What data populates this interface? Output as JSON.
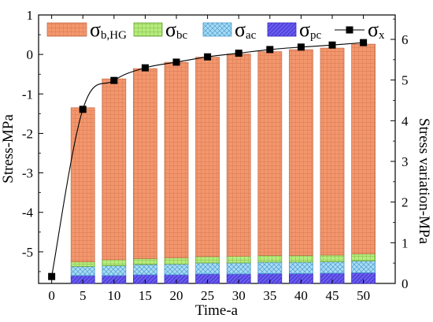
{
  "chart_data": {
    "type": "bar",
    "subtype": "stacked-bar-with-line-secondary-axis",
    "xlabel": "Time-a",
    "ylabel": "Stress-MPa",
    "y2label": "Stress variation-MPa",
    "ylim": [
      -5.8,
      1
    ],
    "y2lim": [
      0,
      6.6
    ],
    "x_ticks": [
      0,
      5,
      10,
      15,
      20,
      25,
      30,
      35,
      40,
      45,
      50
    ],
    "y_ticks": [
      -5,
      -4,
      -3,
      -2,
      -1,
      0,
      1
    ],
    "y2_ticks": [
      0,
      1,
      2,
      3,
      4,
      5,
      6
    ],
    "categories": [
      5,
      10,
      15,
      20,
      25,
      30,
      35,
      40,
      45,
      50
    ],
    "stack_base": -5.8,
    "series": [
      {
        "name": "σpc",
        "symbol": "σ",
        "sub": "pc",
        "values": [
          0.2,
          0.2,
          0.22,
          0.22,
          0.24,
          0.24,
          0.25,
          0.25,
          0.26,
          0.27
        ],
        "color": "#6a5cf0",
        "pattern": "diag"
      },
      {
        "name": "σac",
        "symbol": "σ",
        "sub": "ac",
        "values": [
          0.23,
          0.25,
          0.26,
          0.27,
          0.28,
          0.28,
          0.29,
          0.29,
          0.29,
          0.3
        ],
        "color": "#9fd6f2",
        "pattern": "cross"
      },
      {
        "name": "σbc",
        "symbol": "σ",
        "sub": "bc",
        "values": [
          0.12,
          0.15,
          0.15,
          0.16,
          0.16,
          0.17,
          0.17,
          0.17,
          0.17,
          0.18
        ],
        "color": "#b6ec7c",
        "pattern": "grid"
      },
      {
        "name": "σb,HG",
        "symbol": "σ",
        "sub": "b,HG",
        "values": [
          3.9,
          4.58,
          4.81,
          4.95,
          5.05,
          5.12,
          5.16,
          5.21,
          5.24,
          5.31
        ],
        "color": "#f4966c",
        "pattern": "grid"
      }
    ],
    "line_series": {
      "name": "σx",
      "symbol": "σ",
      "sub": "x",
      "axis": "y2",
      "x": [
        0,
        5,
        10,
        15,
        20,
        25,
        30,
        35,
        40,
        45,
        50
      ],
      "values": [
        0.17,
        4.28,
        4.99,
        5.3,
        5.44,
        5.57,
        5.66,
        5.75,
        5.81,
        5.86,
        5.92
      ],
      "color": "#000000",
      "marker": "square"
    },
    "legend_order": [
      "σb,HG",
      "σbc",
      "σac",
      "σpc",
      "σx"
    ],
    "legend": "top-inside",
    "grid": false
  }
}
